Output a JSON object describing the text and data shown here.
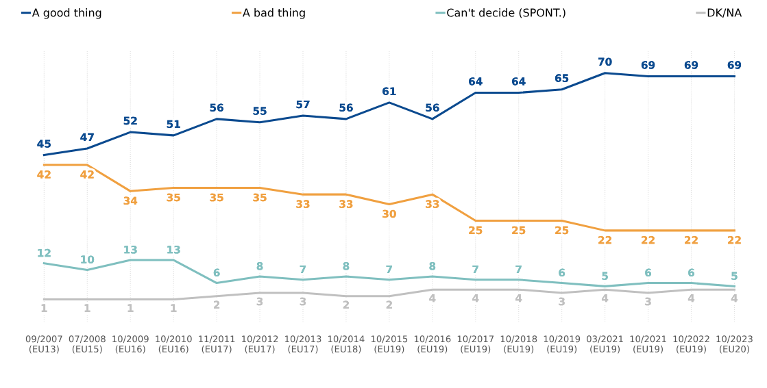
{
  "chart_data": {
    "type": "line",
    "categories": [
      "09/2007\n(EU13)",
      "07/2008\n(EU15)",
      "10/2009\n(EU16)",
      "10/2010\n(EU16)",
      "11/2011\n(EU17)",
      "10/2012\n(EU17)",
      "10/2013\n(EU17)",
      "10/2014\n(EU18)",
      "10/2015\n(EU19)",
      "10/2016\n(EU19)",
      "10/2017\n(EU19)",
      "10/2018\n(EU19)",
      "10/2019\n(EU19)",
      "03/2021\n(EU19)",
      "10/2021\n(EU19)",
      "10/2022\n(EU19)",
      "10/2023\n(EU20)"
    ],
    "series": [
      {
        "name": "A good thing",
        "color": "#0b4a8f",
        "values": [
          45,
          47,
          52,
          51,
          56,
          55,
          57,
          56,
          61,
          56,
          64,
          64,
          65,
          70,
          69,
          69,
          69
        ]
      },
      {
        "name": "A bad thing",
        "color": "#f0a040",
        "values": [
          42,
          42,
          34,
          35,
          35,
          35,
          33,
          33,
          30,
          33,
          25,
          25,
          25,
          22,
          22,
          22,
          22
        ]
      },
      {
        "name": "Can't decide (SPONT.)",
        "color": "#7fbfbf",
        "values": [
          12,
          10,
          13,
          13,
          6,
          8,
          7,
          8,
          7,
          8,
          7,
          7,
          6,
          5,
          6,
          6,
          5
        ]
      },
      {
        "name": "DK/NA",
        "color": "#c0c0c0",
        "values": [
          1,
          1,
          1,
          1,
          2,
          3,
          3,
          2,
          2,
          4,
          4,
          4,
          3,
          4,
          3,
          4,
          4
        ]
      }
    ],
    "data_labels": true,
    "grid": "x",
    "legend": "top",
    "line_style": "solid",
    "tick_labels": "x"
  }
}
